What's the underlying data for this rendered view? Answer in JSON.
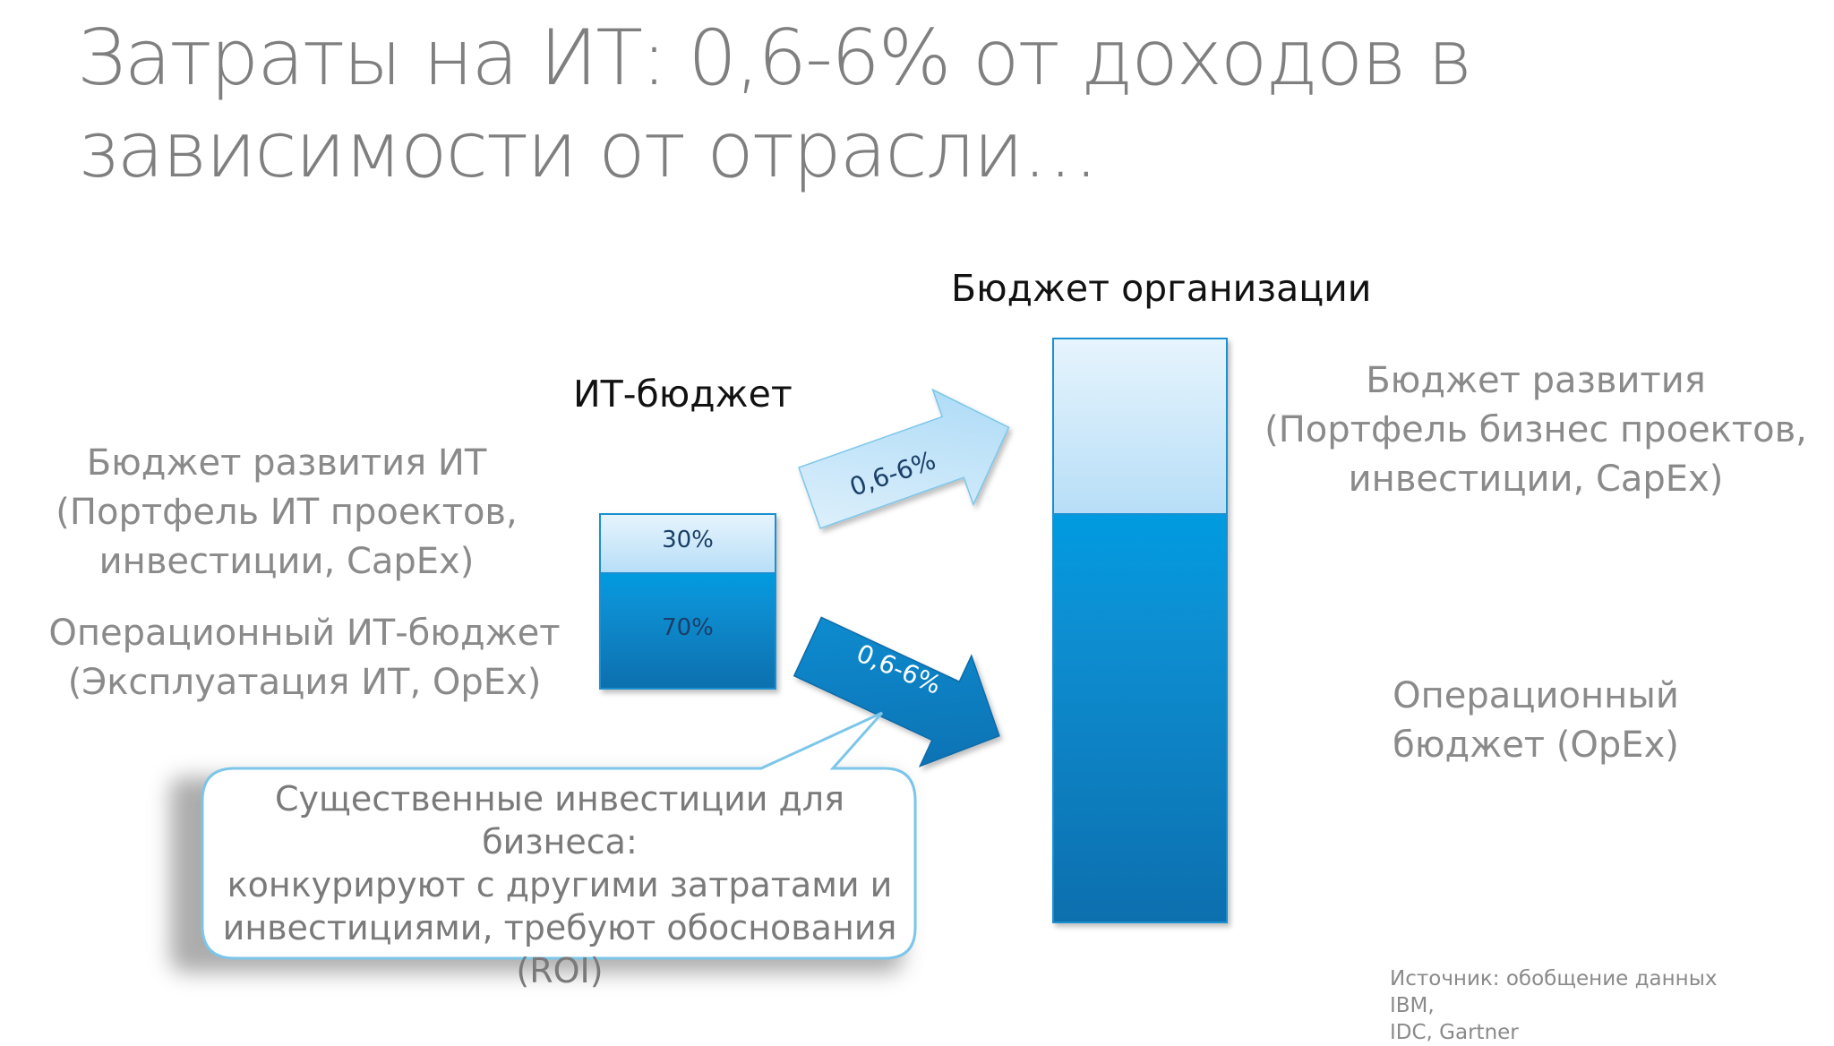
{
  "title": "Затраты на ИТ: 0,6-6% от доходов в зависимости от отрасли…",
  "it_budget": {
    "heading": "ИТ-бюджет",
    "top_pct": "30%",
    "bottom_pct": "70%",
    "top_fraction": 0.3,
    "bottom_fraction": 0.7,
    "dev_label_line1": "Бюджет развития ИТ",
    "dev_label_line2": "(Портфель ИТ проектов,",
    "dev_label_line3": "инвестиции, CapEx)",
    "ops_label_line1": "Операционный ИТ-бюджет",
    "ops_label_line2": "(Эксплуатация ИТ, OpEx)"
  },
  "arrows": {
    "top_label": "0,6-6%",
    "bottom_label": "0,6-6%"
  },
  "org_budget": {
    "heading": "Бюджет организации",
    "dev_label_line1": "Бюджет развития",
    "dev_label_line2": "(Портфель бизнес проектов,",
    "dev_label_line3": "инвестиции, CapEx)",
    "ops_label_line1": "Операционный",
    "ops_label_line2": "бюджет (OpEx)"
  },
  "callout": {
    "line1": "Существенные инвестиции для бизнеса:",
    "line2": "конкурируют с другими затратами и",
    "line3": "инвестициями, требуют обоснования",
    "line4": "(ROI)"
  },
  "source": {
    "line1": "Источник: обобщение данных IBM,",
    "line2": "IDC, Gartner"
  },
  "colors": {
    "light_blue": "#cfe9fb",
    "mid_blue": "#1a9ad8",
    "dark_blue": "#0a6fb0",
    "callout_border": "#7cc6ea"
  }
}
